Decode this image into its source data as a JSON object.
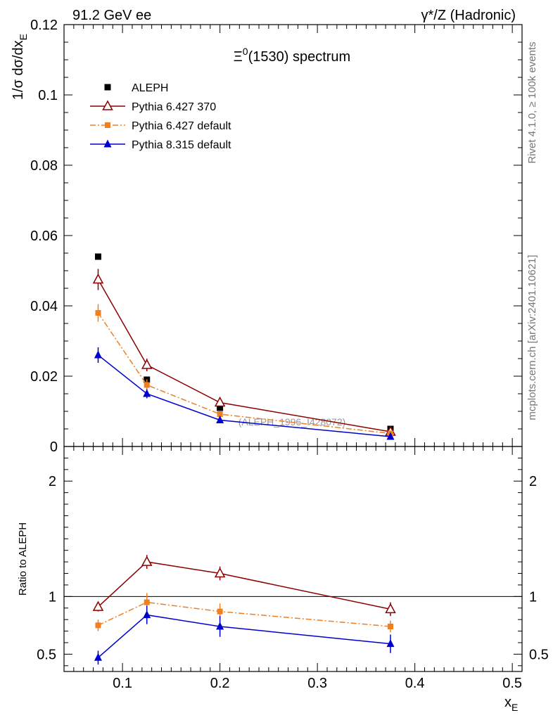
{
  "header": {
    "left": "91.2 GeV ee",
    "right": "γ*/Z (Hadronic)"
  },
  "side_labels": {
    "rivet": "Rivet 4.1.0, ≥ 100k events",
    "mcplots": "mcplots.cern.ch [arXiv:2401.10621]"
  },
  "chart_data": {
    "type": "scatter",
    "title": "Ξ⁰(1530) spectrum",
    "title_base": "Ξ",
    "title_sup": "0",
    "title_rest": "(1530) spectrum",
    "ylabel_main": "1/σ  dσ/dx",
    "ylabel_main_sub": "E",
    "ylabel_ratio": "Ratio to ALEPH",
    "xlabel": "x",
    "xlabel_sub": "E",
    "xlim": [
      0.04,
      0.51
    ],
    "ylim_main": [
      0,
      0.12
    ],
    "ylim_ratio": [
      0.35,
      2.3
    ],
    "x_ticks": [
      0.1,
      0.2,
      0.3,
      0.4,
      0.5
    ],
    "x_tick_labels": [
      "0.1",
      "0.2",
      "0.3",
      "0.4",
      "0.5"
    ],
    "y_ticks_main": [
      0,
      0.02,
      0.04,
      0.06,
      0.08,
      0.1,
      0.12
    ],
    "y_tick_labels_main": [
      "0",
      "0.02",
      "0.04",
      "0.06",
      "0.08",
      "0.1",
      "0.12"
    ],
    "y_ticks_ratio": [
      0.5,
      1,
      2
    ],
    "y_tick_labels_ratio": [
      "0.5",
      "1",
      "2"
    ],
    "reference_label": "(ALEPH_1996_I428072)",
    "legend_position": "top-left",
    "x": [
      0.075,
      0.125,
      0.2,
      0.375
    ],
    "series": [
      {
        "name": "ALEPH",
        "color": "#000000",
        "marker": "square",
        "values": [
          0.054,
          0.019,
          0.011,
          0.005
        ],
        "errors": [
          0.0,
          0.0,
          0.0,
          0.0
        ],
        "ratio": [
          1,
          1,
          1,
          1
        ],
        "ratio_errors": [
          0,
          0,
          0,
          0
        ],
        "line": false
      },
      {
        "name": "Pythia 6.427 370",
        "color": "#8b0000",
        "marker": "open-triangle",
        "values": [
          0.0475,
          0.0232,
          0.0125,
          0.0042
        ],
        "errors": [
          0.003,
          0.0018,
          0.0009,
          0.0003
        ],
        "ratio": [
          0.91,
          1.3,
          1.2,
          0.89
        ],
        "ratio_errors": [
          0.04,
          0.06,
          0.06,
          0.06
        ],
        "line": "solid"
      },
      {
        "name": "Pythia 6.427 default",
        "color": "#f07f20",
        "marker": "filled-square",
        "values": [
          0.038,
          0.0175,
          0.0092,
          0.0037
        ],
        "errors": [
          0.0025,
          0.0016,
          0.0008,
          0.0003
        ],
        "ratio": [
          0.75,
          0.95,
          0.87,
          0.74
        ],
        "ratio_errors": [
          0.05,
          0.08,
          0.07,
          0.05
        ],
        "line": "dashdot"
      },
      {
        "name": "Pythia 8.315 default",
        "color": "#0000cc",
        "marker": "filled-triangle",
        "values": [
          0.026,
          0.015,
          0.0075,
          0.0028
        ],
        "errors": [
          0.0022,
          0.0013,
          0.0007,
          0.0004
        ],
        "ratio": [
          0.47,
          0.84,
          0.74,
          0.59
        ],
        "ratio_errors": [
          0.06,
          0.08,
          0.09,
          0.08
        ],
        "line": "solid"
      }
    ]
  }
}
